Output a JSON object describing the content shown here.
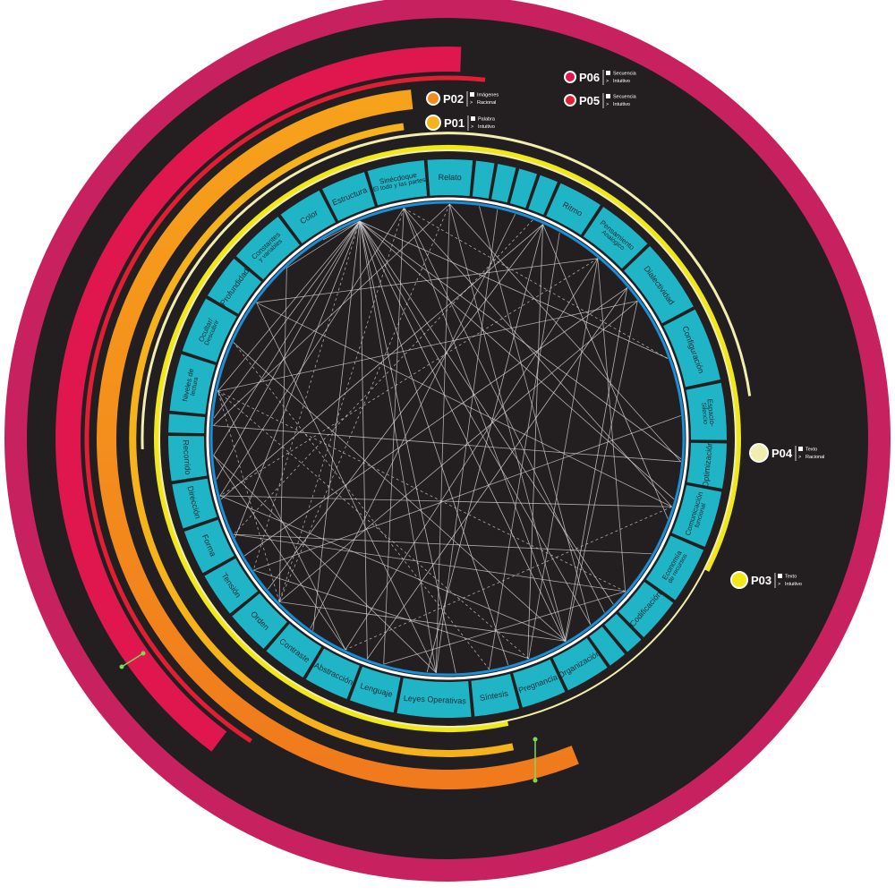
{
  "colors": {
    "outer_ring": "#c7215f",
    "background": "#231f20",
    "segment": "#1fb5c6",
    "segment_text": "#0d2c33",
    "inner_ring": "#1a8fd6",
    "cream_line": "#f2eeb0",
    "lines": "#d8d8d8",
    "p06": "#e0164f",
    "p05": "#e21e35",
    "p02": "#f28c1c",
    "p01": "#f6b21a",
    "p04": "#f2eeb0",
    "p03": "#f0e81a"
  },
  "segments": [
    {
      "label": "Sinécdoque",
      "sub": "El todo y las partes"
    },
    {
      "label": "Relato"
    },
    {
      "label": ""
    },
    {
      "label": ""
    },
    {
      "label": ""
    },
    {
      "label": ""
    },
    {
      "label": "Ritmo"
    },
    {
      "label": "Pensamiento",
      "sub": "Analógico"
    },
    {
      "label": "Dialectividad"
    },
    {
      "label": "Configuración"
    },
    {
      "label": "Espacio-",
      "sub": "Silencio"
    },
    {
      "label": "Optimización"
    },
    {
      "label": "Comunicación",
      "sub": "funcional"
    },
    {
      "label": "Economía",
      "sub": "de recursos"
    },
    {
      "label": "Codificación"
    },
    {
      "label": ""
    },
    {
      "label": ""
    },
    {
      "label": "Organización"
    },
    {
      "label": "Pregnancia"
    },
    {
      "label": "Síntesis"
    },
    {
      "label": "Leyes Operativas"
    },
    {
      "label": "Lenguaje"
    },
    {
      "label": "Abstracción"
    },
    {
      "label": "Contraste"
    },
    {
      "label": "Orden"
    },
    {
      "label": "Tensión"
    },
    {
      "label": "Forma"
    },
    {
      "label": "Dirección"
    },
    {
      "label": "Recorrido"
    },
    {
      "label": ""
    },
    {
      "label": "Niveles de",
      "sub": "lectura"
    },
    {
      "label": "Ocultar/",
      "sub": "Descubrir"
    },
    {
      "label": "Profundidad"
    },
    {
      "label": "Constantes",
      "sub": "y variables"
    },
    {
      "label": "Color"
    },
    {
      "label": "Estructura"
    }
  ],
  "persons": [
    {
      "code": "P06",
      "line1": "Secuencia",
      "line2": "Intuitivo"
    },
    {
      "code": "P05",
      "line1": "Secuencia",
      "line2": "Intuitivo"
    },
    {
      "code": "P02",
      "line1": "Imágenes",
      "line2": "Racional"
    },
    {
      "code": "P01",
      "line1": "Palabra",
      "line2": "Intuitivo"
    },
    {
      "code": "P04",
      "line1": "Texto",
      "line2": "Racional"
    },
    {
      "code": "P03",
      "line1": "Texto",
      "line2": "Intuitivo"
    }
  ],
  "legend_arrow": ">",
  "connections": [
    [
      0,
      9
    ],
    [
      0,
      12
    ],
    [
      0,
      15
    ],
    [
      0,
      17
    ],
    [
      0,
      21
    ],
    [
      0,
      24
    ],
    [
      0,
      27
    ],
    [
      1,
      11
    ],
    [
      1,
      17
    ],
    [
      1,
      20
    ],
    [
      1,
      24
    ],
    [
      1,
      29
    ],
    [
      7,
      14
    ],
    [
      7,
      18
    ],
    [
      7,
      22
    ],
    [
      7,
      27
    ],
    [
      7,
      32
    ],
    [
      8,
      17
    ],
    [
      8,
      24
    ],
    [
      8,
      30
    ],
    [
      12,
      22
    ],
    [
      12,
      27
    ],
    [
      12,
      32
    ],
    [
      14,
      21
    ],
    [
      14,
      26
    ],
    [
      14,
      30
    ],
    [
      17,
      24
    ],
    [
      17,
      27
    ],
    [
      17,
      31
    ],
    [
      18,
      25
    ],
    [
      18,
      30
    ],
    [
      20,
      28
    ],
    [
      20,
      32
    ],
    [
      22,
      28
    ],
    [
      22,
      30
    ],
    [
      24,
      30
    ],
    [
      24,
      33
    ],
    [
      2,
      16
    ],
    [
      3,
      20
    ],
    [
      4,
      23
    ],
    [
      5,
      26
    ],
    [
      6,
      19
    ],
    [
      10,
      25
    ],
    [
      11,
      29
    ],
    [
      13,
      26
    ],
    [
      19,
      31
    ],
    [
      28,
      35
    ],
    [
      30,
      35
    ],
    [
      33,
      35
    ],
    [
      34,
      35
    ],
    [
      35,
      25
    ],
    [
      35,
      20
    ],
    [
      35,
      16
    ]
  ],
  "hub_connections": [
    {
      "from_angle": 338,
      "to_angles": [
        70,
        105,
        135,
        150,
        165,
        178,
        200,
        215,
        245,
        260,
        275,
        95
      ]
    },
    {
      "from_angle": 24,
      "to_angles": [
        110,
        160,
        185,
        230,
        255
      ]
    },
    {
      "from_angle": 50,
      "to_angles": [
        150,
        200,
        240
      ]
    }
  ]
}
